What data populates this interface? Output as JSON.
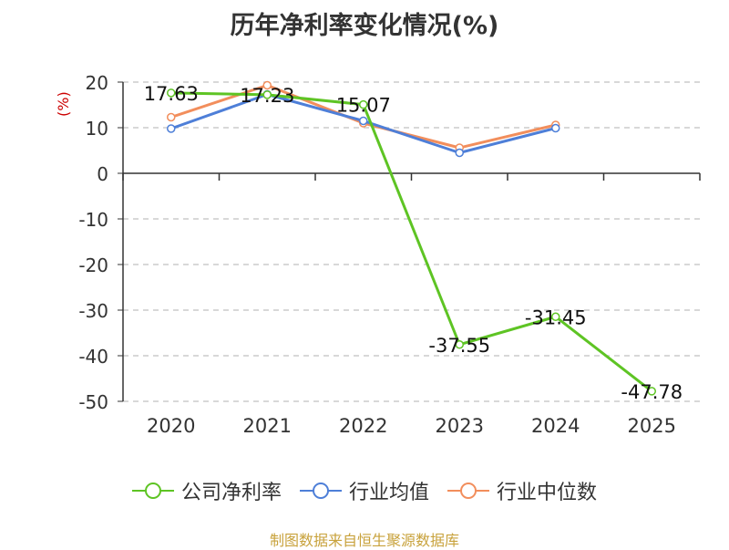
{
  "chart_data": {
    "type": "line",
    "title": "历年净利率变化情况(%)",
    "ylabel": "(%)",
    "xlabel": "",
    "categories": [
      "2020",
      "2021",
      "2022",
      "2023",
      "2024",
      "2025"
    ],
    "ylim": [
      -50,
      20
    ],
    "yticks": [
      20,
      10,
      0,
      -10,
      -20,
      -30,
      -40,
      -50
    ],
    "grid": true,
    "legend_position": "bottom",
    "series": [
      {
        "name": "公司净利率",
        "color": "#5ec424",
        "values": [
          17.63,
          17.23,
          15.07,
          -37.55,
          -31.45,
          -47.78
        ],
        "labels": [
          "17.63",
          "17.23",
          "15.07",
          "-37.55",
          "-31.45",
          "-47.78"
        ]
      },
      {
        "name": "行业均值",
        "color": "#4e7fd8",
        "values": [
          9.8,
          17.3,
          11.5,
          4.5,
          9.9,
          null
        ]
      },
      {
        "name": "行业中位数",
        "color": "#f28e5c",
        "values": [
          12.3,
          19.3,
          11.0,
          5.6,
          10.6,
          null
        ]
      }
    ]
  },
  "source_text": "制图数据来自恒生聚源数据库",
  "ylabel_color": "#cc0000"
}
